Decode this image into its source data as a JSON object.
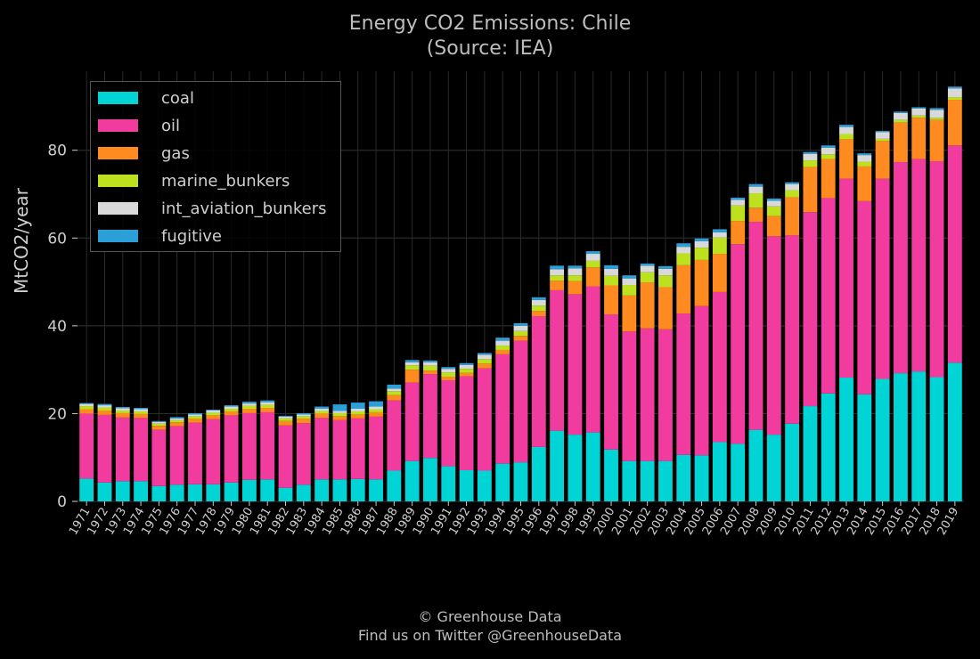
{
  "title_line1": "Energy CO2 Emissions: Chile",
  "title_line2": "(Source: IEA)",
  "credit_line1": "© Greenhouse Data",
  "credit_line2": "Find us on Twitter @GreenhouseData",
  "colors": {
    "coal": "#00d4d4",
    "oil": "#f23b9e",
    "gas": "#ff8a1f",
    "marine_bunkers": "#bde01f",
    "int_aviation_bunkers": "#d9d9d9",
    "fugitive": "#2a9fd8",
    "grid": "#2a2a2a",
    "axis": "#cfcfcf"
  },
  "chart_data": {
    "type": "bar",
    "stacked": true,
    "title": "Energy CO2 Emissions: Chile\n(Source: IEA)",
    "xlabel": "",
    "ylabel": "MtCO2/year",
    "ylim": [
      0,
      98
    ],
    "yticks": [
      0,
      20,
      40,
      60,
      80
    ],
    "grid": true,
    "legend_position": "top-left",
    "categories": [
      "1971",
      "1972",
      "1973",
      "1974",
      "1975",
      "1976",
      "1977",
      "1978",
      "1979",
      "1980",
      "1981",
      "1982",
      "1983",
      "1984",
      "1985",
      "1986",
      "1987",
      "1988",
      "1989",
      "1990",
      "1991",
      "1992",
      "1993",
      "1994",
      "1995",
      "1996",
      "1997",
      "1998",
      "1999",
      "2000",
      "2001",
      "2002",
      "2003",
      "2004",
      "2005",
      "2006",
      "2007",
      "2008",
      "2009",
      "2010",
      "2011",
      "2012",
      "2013",
      "2014",
      "2015",
      "2016",
      "2017",
      "2018",
      "2019"
    ],
    "series": [
      {
        "name": "coal",
        "values": [
          5.2,
          4.3,
          4.6,
          4.6,
          3.5,
          3.8,
          3.9,
          3.9,
          4.3,
          4.9,
          5.0,
          3.1,
          3.8,
          5.0,
          5.0,
          5.1,
          5.0,
          7.0,
          9.2,
          9.9,
          8.0,
          7.1,
          7.0,
          8.6,
          8.9,
          12.4,
          16.1,
          15.2,
          15.7,
          11.8,
          9.2,
          9.2,
          9.2,
          10.6,
          10.5,
          13.5,
          13.1,
          16.3,
          15.2,
          17.7,
          21.7,
          24.6,
          28.2,
          24.4,
          27.9,
          29.2,
          29.6,
          28.3,
          31.6
        ]
      },
      {
        "name": "oil",
        "values": [
          14.8,
          15.4,
          14.5,
          14.4,
          12.8,
          13.3,
          14.0,
          14.8,
          15.3,
          15.2,
          15.3,
          14.2,
          14.0,
          14.0,
          13.5,
          13.8,
          14.3,
          16.0,
          17.9,
          19.1,
          19.6,
          21.4,
          23.3,
          24.9,
          27.7,
          29.8,
          32.0,
          32.0,
          33.3,
          30.8,
          29.5,
          30.2,
          30.0,
          32.2,
          34.0,
          34.2,
          45.5,
          47.4,
          45.2,
          42.9,
          44.2,
          44.5,
          45.3,
          44.0,
          45.6,
          48.1,
          48.4,
          49.2,
          49.5
        ]
      },
      {
        "name": "gas",
        "values": [
          1.0,
          1.0,
          1.0,
          0.9,
          0.9,
          0.9,
          0.9,
          0.9,
          0.9,
          1.0,
          1.0,
          1.0,
          1.0,
          1.0,
          0.9,
          0.9,
          1.0,
          1.2,
          2.9,
          0.8,
          0.8,
          0.8,
          1.1,
          1.0,
          1.1,
          1.2,
          2.2,
          3.0,
          4.3,
          6.6,
          8.2,
          10.5,
          9.6,
          11.0,
          10.5,
          8.7,
          5.3,
          3.2,
          4.6,
          8.7,
          10.3,
          8.9,
          9.0,
          7.9,
          8.6,
          9.0,
          9.4,
          9.4,
          10.4
        ]
      },
      {
        "name": "marine_bunkers",
        "values": [
          0.7,
          0.7,
          0.6,
          0.6,
          0.5,
          0.5,
          0.6,
          0.6,
          0.6,
          0.7,
          0.7,
          0.6,
          0.6,
          0.6,
          0.7,
          0.7,
          0.7,
          0.9,
          1.0,
          1.1,
          1.0,
          0.9,
          1.0,
          1.0,
          1.1,
          1.2,
          1.2,
          1.3,
          1.5,
          2.2,
          2.4,
          2.3,
          2.7,
          2.7,
          2.8,
          3.7,
          3.5,
          3.3,
          2.2,
          1.6,
          1.5,
          1.1,
          1.2,
          1.1,
          0.5,
          0.6,
          0.5,
          0.5,
          0.6
        ]
      },
      {
        "name": "int_aviation_bunkers",
        "values": [
          0.5,
          0.5,
          0.5,
          0.5,
          0.4,
          0.4,
          0.4,
          0.5,
          0.5,
          0.5,
          0.6,
          0.4,
          0.4,
          0.5,
          0.5,
          0.6,
          0.6,
          0.6,
          0.7,
          0.8,
          0.8,
          0.9,
          1.0,
          1.1,
          1.2,
          1.3,
          1.4,
          1.6,
          1.6,
          1.6,
          1.5,
          1.5,
          1.5,
          1.5,
          1.5,
          1.2,
          1.3,
          1.5,
          1.3,
          1.4,
          1.5,
          1.5,
          1.6,
          1.5,
          1.5,
          1.6,
          1.6,
          1.8,
          2.0
        ]
      },
      {
        "name": "fugitive",
        "values": [
          0.2,
          0.3,
          0.3,
          0.3,
          0.2,
          0.3,
          0.3,
          0.2,
          0.3,
          0.4,
          0.4,
          0.2,
          0.3,
          0.5,
          1.5,
          1.4,
          1.2,
          0.9,
          0.5,
          0.4,
          0.4,
          0.4,
          0.4,
          0.7,
          0.6,
          0.6,
          0.8,
          0.6,
          0.6,
          0.8,
          0.7,
          0.5,
          0.6,
          0.8,
          0.6,
          0.7,
          0.5,
          0.6,
          0.5,
          0.4,
          0.4,
          0.5,
          0.5,
          0.4,
          0.3,
          0.3,
          0.3,
          0.4,
          0.4
        ]
      }
    ]
  }
}
